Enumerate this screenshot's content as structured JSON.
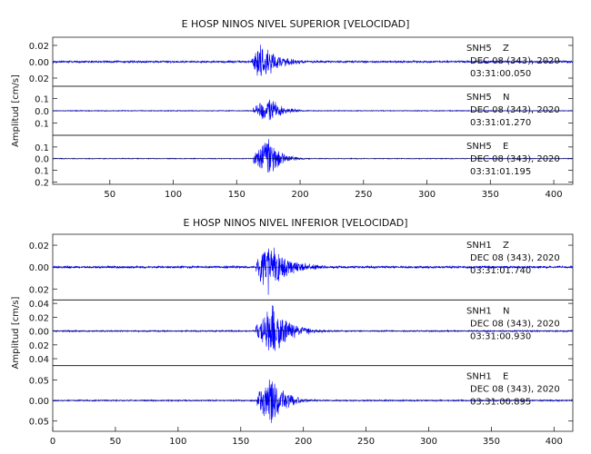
{
  "chart_data": [
    {
      "type": "line",
      "title": "E HOSP NINOS NIVEL SUPERIOR [VELOCIDAD]",
      "ylabel": "Amplitud [cm/s]",
      "xlabel": "",
      "xlim": [
        5,
        415
      ],
      "xticks": [
        50,
        100,
        150,
        200,
        250,
        300,
        350,
        400
      ],
      "grid": false,
      "line_color": "#0000ff",
      "traces": [
        {
          "station": "SNH5",
          "component": "Z",
          "date": "DEC 08 (343), 2020",
          "time": "03:31:00.050",
          "ylim": [
            -0.03,
            0.03
          ],
          "yticks": [
            {
              "v": 0.02,
              "t": "0.02"
            },
            {
              "v": 0.0,
              "t": "0.00"
            },
            {
              "v": -0.02,
              "t": "0.02"
            }
          ],
          "noise": 0.0015,
          "arrival": 162,
          "peak": 0.028,
          "peak_time": 168,
          "decay": 14
        },
        {
          "station": "SNH5",
          "component": "N",
          "date": "DEC 08 (343), 2020",
          "time": "03:31:01.270",
          "ylim": [
            -0.2,
            0.2
          ],
          "yticks": [
            {
              "v": 0.1,
              "t": "0.1"
            },
            {
              "v": 0.0,
              "t": "0.0"
            },
            {
              "v": -0.1,
              "t": "0.1"
            }
          ],
          "noise": 0.004,
          "arrival": 163,
          "peak": 0.13,
          "peak_time": 175,
          "decay": 10
        },
        {
          "station": "SNH5",
          "component": "E",
          "date": "DEC 08 (343), 2020",
          "time": "03:31:01.195",
          "ylim": [
            -0.22,
            0.2
          ],
          "yticks": [
            {
              "v": 0.1,
              "t": "0.1"
            },
            {
              "v": 0.0,
              "t": "0.0"
            },
            {
              "v": -0.1,
              "t": "0.1"
            },
            {
              "v": -0.2,
              "t": "0.2"
            }
          ],
          "noise": 0.004,
          "arrival": 163,
          "peak": 0.19,
          "peak_time": 175,
          "decay": 9
        }
      ]
    },
    {
      "type": "line",
      "title": "E HOSP NINOS NIVEL INFERIOR [VELOCIDAD]",
      "ylabel": "Amplitud [cm/s]",
      "xlabel": "",
      "xlim": [
        0,
        415
      ],
      "xticks": [
        0,
        50,
        100,
        150,
        200,
        250,
        300,
        350,
        400
      ],
      "grid": false,
      "line_color": "#0000ff",
      "traces": [
        {
          "station": "SNH1",
          "component": "Z",
          "date": "DEC 08 (343), 2020",
          "time": "03:31:01.740",
          "ylim": [
            -0.03,
            0.03
          ],
          "yticks": [
            {
              "v": 0.02,
              "t": "0.02"
            },
            {
              "v": 0.0,
              "t": "0.00"
            },
            {
              "v": -0.02,
              "t": "0.02"
            }
          ],
          "noise": 0.0012,
          "arrival": 162,
          "peak": 0.026,
          "peak_time": 172,
          "decay": 16
        },
        {
          "station": "SNH1",
          "component": "N",
          "date": "DEC 08 (343), 2020",
          "time": "03:31:00.930",
          "ylim": [
            -0.05,
            0.045
          ],
          "yticks": [
            {
              "v": 0.04,
              "t": "0.04"
            },
            {
              "v": 0.02,
              "t": "0.02"
            },
            {
              "v": 0.0,
              "t": "0.00"
            },
            {
              "v": -0.02,
              "t": "0.02"
            },
            {
              "v": -0.04,
              "t": "0.04"
            }
          ],
          "noise": 0.0012,
          "arrival": 162,
          "peak": 0.042,
          "peak_time": 175,
          "decay": 14
        },
        {
          "station": "SNH1",
          "component": "E",
          "date": "DEC 08 (343), 2020",
          "time": "03:31:00.895",
          "ylim": [
            -0.075,
            0.085
          ],
          "yticks": [
            {
              "v": 0.05,
              "t": "0.05"
            },
            {
              "v": 0.0,
              "t": "0.00"
            },
            {
              "v": -0.05,
              "t": "0.05"
            }
          ],
          "noise": 0.002,
          "arrival": 163,
          "peak": 0.075,
          "peak_time": 175,
          "decay": 10
        }
      ]
    }
  ]
}
